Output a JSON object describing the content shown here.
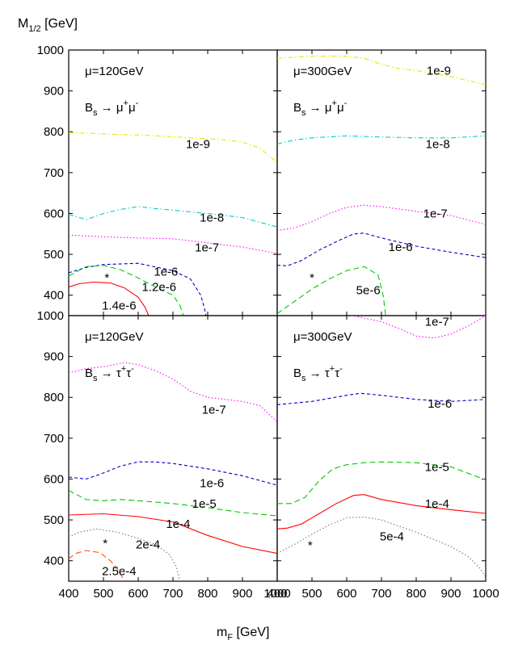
{
  "axes": {
    "ylabel_main": "M",
    "ylabel_sub": "1/2",
    "ylabel_unit": " [GeV]",
    "xlabel_main": "m",
    "xlabel_sub": "F",
    "xlabel_unit": " [GeV]"
  },
  "colors": {
    "red": "#ff0000",
    "green": "#00cc00",
    "blue": "#0000cc",
    "magenta": "#ff00ff",
    "cyan": "#00cccc",
    "yellow": "#e8e800",
    "gray": "#777777",
    "orange": "#ff5000"
  },
  "chart_data": [
    {
      "type": "line",
      "panel": "top-left",
      "mu_label": "μ=120GeV",
      "process": {
        "prefix": "B",
        "sub": "s",
        "arrow": "→",
        "l1": "μ",
        "s1": "+",
        "l2": "μ",
        "s2": "-"
      },
      "xlim": [
        400,
        1000
      ],
      "ylim": [
        350,
        1000
      ],
      "xticks": [
        "400",
        "500",
        "600",
        "700",
        "800",
        "900",
        "1000"
      ],
      "yticks": [
        "400",
        "500",
        "600",
        "700",
        "800",
        "900",
        "1000"
      ],
      "marker": {
        "x": 510,
        "y": 445,
        "symbol": "*"
      },
      "series": [
        {
          "label": "1e-9",
          "color": "yellow",
          "dash": "dashdot",
          "label_at": [
            772,
            770
          ],
          "x": [
            400,
            500,
            600,
            700,
            750,
            800,
            850,
            900,
            950,
            1000
          ],
          "y": [
            798,
            795,
            792,
            788,
            785,
            783,
            780,
            775,
            760,
            725
          ]
        },
        {
          "label": "1e-8",
          "color": "cyan",
          "dash": "dashdot",
          "label_at": [
            812,
            590
          ],
          "x": [
            400,
            450,
            500,
            550,
            600,
            650,
            700,
            800,
            900,
            1000
          ],
          "y": [
            598,
            585,
            600,
            610,
            617,
            612,
            608,
            600,
            590,
            567
          ]
        },
        {
          "label": "1e-7",
          "color": "magenta",
          "dash": "dot",
          "label_at": [
            798,
            517
          ],
          "x": [
            400,
            500,
            600,
            700,
            800,
            900,
            1000
          ],
          "y": [
            547,
            543,
            540,
            538,
            528,
            518,
            502
          ]
        },
        {
          "label": "1e-6",
          "color": "blue",
          "dash": "dash",
          "label_at": [
            680,
            458
          ],
          "x": [
            400,
            450,
            500,
            600,
            700,
            750,
            780,
            790,
            795
          ],
          "y": [
            455,
            468,
            475,
            478,
            460,
            440,
            400,
            370,
            350
          ]
        },
        {
          "label": "1.2e-6",
          "color": "green",
          "dash": "longdash",
          "label_at": [
            660,
            420
          ],
          "x": [
            400,
            450,
            500,
            550,
            600,
            650,
            700,
            720,
            730
          ],
          "y": [
            447,
            470,
            473,
            462,
            442,
            420,
            400,
            375,
            350
          ]
        },
        {
          "label": "1.4e-6",
          "color": "red",
          "dash": "solid",
          "label_at": [
            545,
            375
          ],
          "x": [
            400,
            430,
            470,
            520,
            560,
            600,
            620,
            630
          ],
          "y": [
            420,
            428,
            432,
            430,
            418,
            395,
            370,
            350
          ]
        }
      ]
    },
    {
      "type": "line",
      "panel": "top-right",
      "mu_label": "μ=300GeV",
      "process": {
        "prefix": "B",
        "sub": "s",
        "arrow": "→",
        "l1": "μ",
        "s1": "+",
        "l2": "μ",
        "s2": "-"
      },
      "xlim": [
        400,
        1000
      ],
      "ylim": [
        350,
        1000
      ],
      "xticks": [
        "400",
        "500",
        "600",
        "700",
        "800",
        "900",
        "1000"
      ],
      "yticks": [],
      "marker": {
        "x": 500,
        "y": 445,
        "symbol": "*"
      },
      "series": [
        {
          "label": "1e-9",
          "color": "yellow",
          "dash": "dashdot",
          "label_at": [
            865,
            950
          ],
          "x": [
            400,
            500,
            600,
            650,
            700,
            750,
            800,
            900,
            1000
          ],
          "y": [
            980,
            985,
            985,
            980,
            965,
            955,
            950,
            935,
            915
          ]
        },
        {
          "label": "1e-8",
          "color": "cyan",
          "dash": "dashdot",
          "label_at": [
            862,
            770
          ],
          "x": [
            400,
            450,
            500,
            600,
            700,
            800,
            900,
            1000
          ],
          "y": [
            770,
            780,
            785,
            790,
            787,
            785,
            785,
            790
          ]
        },
        {
          "label": "1e-7",
          "color": "magenta",
          "dash": "dot",
          "label_at": [
            855,
            600
          ],
          "x": [
            400,
            450,
            500,
            550,
            600,
            650,
            700,
            800,
            900,
            1000
          ],
          "y": [
            558,
            565,
            580,
            600,
            615,
            620,
            617,
            605,
            595,
            573
          ]
        },
        {
          "label": "1e-6",
          "color": "blue",
          "dash": "dash",
          "label_at": [
            755,
            518
          ],
          "x": [
            400,
            430,
            470,
            520,
            580,
            620,
            650,
            700,
            800,
            900,
            1000
          ],
          "y": [
            473,
            472,
            485,
            510,
            535,
            550,
            552,
            540,
            520,
            505,
            492
          ]
        },
        {
          "label": "5e-6",
          "color": "green",
          "dash": "longdash",
          "label_at": [
            662,
            412
          ],
          "x": [
            400,
            450,
            500,
            550,
            600,
            650,
            690,
            705,
            712
          ],
          "y": [
            355,
            385,
            415,
            440,
            460,
            470,
            450,
            400,
            350
          ]
        }
      ]
    },
    {
      "type": "line",
      "panel": "bottom-left",
      "mu_label": "μ=120GeV",
      "process": {
        "prefix": "B",
        "sub": "s",
        "arrow": "→",
        "l1": "τ",
        "s1": "+",
        "l2": "τ",
        "s2": "-"
      },
      "xlim": [
        400,
        1000
      ],
      "ylim": [
        350,
        1000
      ],
      "xticks": [
        "400",
        "500",
        "600",
        "700",
        "800",
        "900",
        "1000"
      ],
      "yticks": [
        "400",
        "500",
        "600",
        "700",
        "800",
        "900",
        "1000"
      ],
      "marker": {
        "x": 505,
        "y": 445,
        "symbol": "*"
      },
      "series": [
        {
          "label": "1e-7",
          "color": "magenta",
          "dash": "dot",
          "label_at": [
            818,
            770
          ],
          "x": [
            400,
            450,
            500,
            560,
            600,
            650,
            700,
            750,
            800,
            850,
            900,
            950,
            1000
          ],
          "y": [
            860,
            870,
            875,
            885,
            880,
            865,
            845,
            815,
            800,
            795,
            790,
            780,
            740
          ]
        },
        {
          "label": "1e-6",
          "color": "blue",
          "dash": "dash",
          "label_at": [
            812,
            590
          ],
          "x": [
            400,
            450,
            500,
            550,
            600,
            650,
            700,
            800,
            900,
            1000
          ],
          "y": [
            605,
            600,
            615,
            632,
            642,
            642,
            638,
            625,
            608,
            585
          ]
        },
        {
          "label": "1e-5",
          "color": "green",
          "dash": "longdash",
          "label_at": [
            790,
            540
          ],
          "x": [
            400,
            450,
            500,
            550,
            600,
            700,
            800,
            900,
            1000
          ],
          "y": [
            572,
            550,
            547,
            550,
            547,
            540,
            530,
            518,
            510
          ]
        },
        {
          "label": "1e-4",
          "color": "red",
          "dash": "solid",
          "label_at": [
            715,
            490
          ],
          "x": [
            400,
            500,
            600,
            700,
            800,
            900,
            1000
          ],
          "y": [
            512,
            515,
            508,
            495,
            462,
            435,
            418
          ]
        },
        {
          "label": "2e-4",
          "color": "gray",
          "dash": "dot",
          "label_at": [
            628,
            440
          ],
          "x": [
            400,
            430,
            480,
            540,
            600,
            650,
            690,
            710,
            720
          ],
          "y": [
            458,
            470,
            478,
            470,
            455,
            440,
            415,
            385,
            350
          ]
        },
        {
          "label": "2.5e-4",
          "color": "orange",
          "dash": "longdash",
          "label_at": [
            545,
            375
          ],
          "x": [
            400,
            420,
            450,
            490,
            520,
            545,
            560
          ],
          "y": [
            405,
            418,
            425,
            420,
            400,
            375,
            350
          ]
        }
      ]
    },
    {
      "type": "line",
      "panel": "bottom-right",
      "mu_label": "μ=300GeV",
      "process": {
        "prefix": "B",
        "sub": "s",
        "arrow": "→",
        "l1": "τ",
        "s1": "+",
        "l2": "τ",
        "s2": "-"
      },
      "xlim": [
        400,
        1000
      ],
      "ylim": [
        350,
        1000
      ],
      "xticks": [
        "400",
        "500",
        "600",
        "700",
        "800",
        "900",
        "1000"
      ],
      "yticks": [],
      "marker": {
        "x": 495,
        "y": 440,
        "symbol": "*"
      },
      "series": [
        {
          "label": "1e-7",
          "color": "magenta",
          "dash": "dot",
          "label_at": [
            860,
            985
          ],
          "x": [
            400,
            500,
            600,
            700,
            760,
            800,
            850,
            900,
            950,
            1000
          ],
          "y": [
            1005,
            1005,
            1003,
            985,
            965,
            950,
            945,
            955,
            975,
            1000
          ]
        },
        {
          "label": "1e-6",
          "color": "blue",
          "dash": "dash",
          "label_at": [
            868,
            785
          ],
          "x": [
            400,
            500,
            600,
            640,
            700,
            800,
            900,
            1000
          ],
          "y": [
            782,
            790,
            805,
            810,
            805,
            795,
            790,
            795
          ]
        },
        {
          "label": "1e-5",
          "color": "green",
          "dash": "longdash",
          "label_at": [
            860,
            630
          ],
          "x": [
            400,
            440,
            480,
            520,
            560,
            600,
            650,
            700,
            800,
            900,
            1000
          ],
          "y": [
            540,
            540,
            555,
            595,
            625,
            635,
            640,
            642,
            640,
            630,
            598
          ]
        },
        {
          "label": "1e-4",
          "color": "red",
          "dash": "solid",
          "label_at": [
            860,
            540
          ],
          "x": [
            400,
            430,
            470,
            520,
            570,
            620,
            650,
            700,
            800,
            900,
            1000
          ],
          "y": [
            478,
            480,
            490,
            515,
            540,
            560,
            562,
            550,
            535,
            525,
            516
          ]
        },
        {
          "label": "5e-4",
          "color": "gray",
          "dash": "dot",
          "label_at": [
            730,
            460
          ],
          "x": [
            400,
            450,
            500,
            550,
            600,
            650,
            700,
            800,
            900,
            950,
            980,
            1000
          ],
          "y": [
            418,
            440,
            465,
            488,
            505,
            507,
            500,
            470,
            435,
            410,
            385,
            360
          ]
        }
      ]
    }
  ]
}
